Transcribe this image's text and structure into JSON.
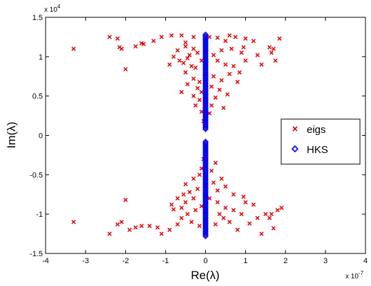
{
  "chart_data": {
    "type": "scatter",
    "xlabel": "Re(λ)",
    "ylabel": "Im(λ)",
    "x_exponent_label": "x 10",
    "x_exponent_power": "-7",
    "y_exponent_label": "x 10",
    "y_exponent_power": "4",
    "xlim": [
      -4,
      4
    ],
    "ylim": [
      -1.5,
      1.5
    ],
    "x_ticks": [
      -4,
      -3,
      -2,
      -1,
      0,
      1,
      2,
      3,
      4
    ],
    "y_ticks": [
      -1.5,
      -1,
      -0.5,
      0,
      0.5,
      1,
      1.5
    ],
    "x_tick_labels": [
      "-4",
      "-3",
      "-2",
      "-1",
      "0",
      "1",
      "2",
      "3",
      "4"
    ],
    "y_tick_labels": [
      "-1.5",
      "-1",
      "-0.5",
      "0",
      "0.5",
      "1",
      "1.5"
    ],
    "grid": false,
    "legend_position": "right",
    "series": [
      {
        "name": "eigs",
        "marker": "x",
        "color": "#e00000",
        "points": [
          [
            -3.3,
            1.1
          ],
          [
            -2.4,
            1.25
          ],
          [
            -2.2,
            1.23
          ],
          [
            -2.15,
            1.12
          ],
          [
            -2.1,
            1.1
          ],
          [
            -2.0,
            0.84
          ],
          [
            -1.75,
            1.13
          ],
          [
            -1.6,
            1.17
          ],
          [
            -1.55,
            1.16
          ],
          [
            -1.3,
            1.2
          ],
          [
            -1.1,
            1.25
          ],
          [
            -0.85,
            1.27
          ],
          [
            -0.6,
            1.27
          ],
          [
            -0.3,
            1.25
          ],
          [
            -0.5,
            1.18
          ],
          [
            -0.7,
            1.08
          ],
          [
            -0.4,
            1.02
          ],
          [
            -0.65,
            0.95
          ],
          [
            -0.55,
            0.92
          ],
          [
            -0.35,
            0.88
          ],
          [
            -0.25,
            0.86
          ],
          [
            -0.5,
            0.8
          ],
          [
            -0.3,
            0.72
          ],
          [
            -0.15,
            0.68
          ],
          [
            -0.45,
            0.65
          ],
          [
            -0.2,
            0.6
          ],
          [
            -0.1,
            0.55
          ],
          [
            -0.6,
            0.55
          ],
          [
            -0.3,
            0.5
          ],
          [
            -0.15,
            0.45
          ],
          [
            -0.25,
            0.38
          ],
          [
            -0.1,
            0.3
          ],
          [
            -0.05,
            0.18
          ],
          [
            -0.5,
            1.13
          ],
          [
            -0.8,
            1.0
          ],
          [
            -0.9,
            0.9
          ],
          [
            -0.45,
            0.98
          ],
          [
            -0.2,
            1.05
          ],
          [
            -0.1,
            0.95
          ],
          [
            -0.3,
            1.1
          ],
          [
            0.1,
            1.25
          ],
          [
            0.3,
            1.24
          ],
          [
            0.5,
            1.2
          ],
          [
            0.6,
            1.27
          ],
          [
            0.75,
            1.25
          ],
          [
            0.95,
            1.12
          ],
          [
            1.0,
            1.23
          ],
          [
            1.2,
            1.2
          ],
          [
            0.9,
            1.05
          ],
          [
            0.65,
            1.1
          ],
          [
            0.4,
            1.08
          ],
          [
            0.2,
            1.02
          ],
          [
            0.3,
            0.95
          ],
          [
            0.5,
            0.9
          ],
          [
            0.7,
            0.88
          ],
          [
            0.85,
            0.8
          ],
          [
            0.6,
            0.78
          ],
          [
            0.4,
            0.7
          ],
          [
            0.2,
            0.75
          ],
          [
            0.15,
            0.62
          ],
          [
            0.35,
            0.58
          ],
          [
            0.55,
            0.52
          ],
          [
            0.25,
            0.48
          ],
          [
            0.15,
            0.38
          ],
          [
            0.45,
            0.35
          ],
          [
            0.1,
            0.28
          ],
          [
            1.3,
            1.02
          ],
          [
            1.4,
            0.9
          ],
          [
            1.6,
            1.12
          ],
          [
            1.7,
            1.1
          ],
          [
            1.75,
            0.95
          ],
          [
            1.85,
            1.23
          ],
          [
            1.65,
            1.05
          ],
          [
            1.0,
            0.95
          ],
          [
            0.8,
            0.68
          ],
          [
            -3.3,
            -1.1
          ],
          [
            -2.4,
            -1.25
          ],
          [
            -2.2,
            -1.13
          ],
          [
            -2.1,
            -1.1
          ],
          [
            -2.0,
            -0.82
          ],
          [
            -1.9,
            -1.2
          ],
          [
            -1.75,
            -1.17
          ],
          [
            -1.6,
            -1.15
          ],
          [
            -1.4,
            -1.15
          ],
          [
            -1.2,
            -1.17
          ],
          [
            -1.1,
            -1.25
          ],
          [
            -0.9,
            -1.2
          ],
          [
            -0.8,
            -0.94
          ],
          [
            -0.6,
            -0.92
          ],
          [
            -0.5,
            -0.85
          ],
          [
            -0.3,
            -0.8
          ],
          [
            -0.7,
            -0.8
          ],
          [
            -0.4,
            -0.72
          ],
          [
            -0.2,
            -0.68
          ],
          [
            -0.5,
            -0.62
          ],
          [
            -0.3,
            -0.55
          ],
          [
            -0.15,
            -0.5
          ],
          [
            -0.1,
            -0.42
          ],
          [
            -0.05,
            -0.3
          ],
          [
            -0.6,
            -1.05
          ],
          [
            -0.45,
            -1.0
          ],
          [
            -0.25,
            -0.95
          ],
          [
            -0.1,
            -0.9
          ],
          [
            -0.35,
            -1.1
          ],
          [
            -0.7,
            -1.13
          ],
          [
            -0.15,
            -1.15
          ],
          [
            -0.55,
            -0.75
          ],
          [
            -0.85,
            -0.88
          ],
          [
            0.1,
            -0.8
          ],
          [
            0.3,
            -0.85
          ],
          [
            0.5,
            -0.92
          ],
          [
            0.7,
            -0.95
          ],
          [
            0.9,
            -1.0
          ],
          [
            1.0,
            -0.85
          ],
          [
            1.2,
            -0.88
          ],
          [
            1.3,
            -1.05
          ],
          [
            1.4,
            -1.25
          ],
          [
            1.5,
            -1.0
          ],
          [
            1.6,
            -1.05
          ],
          [
            1.7,
            -1.18
          ],
          [
            1.8,
            -0.95
          ],
          [
            1.9,
            -0.92
          ],
          [
            0.3,
            -0.7
          ],
          [
            0.5,
            -0.65
          ],
          [
            0.2,
            -0.6
          ],
          [
            0.4,
            -0.55
          ],
          [
            0.15,
            -0.45
          ],
          [
            0.25,
            -0.35
          ],
          [
            0.6,
            -1.1
          ],
          [
            0.8,
            -1.2
          ],
          [
            0.45,
            -1.05
          ],
          [
            0.25,
            -1.13
          ],
          [
            0.7,
            -0.75
          ],
          [
            1.1,
            -1.12
          ],
          [
            1.65,
            -1.0
          ],
          [
            0.95,
            -0.78
          ],
          [
            0.35,
            -1.0
          ]
        ]
      },
      {
        "name": "HKS",
        "marker": "diamond",
        "color": "#0000ee",
        "x_fixed": 0,
        "y_ranges": [
          [
            0.08,
            1.28
          ],
          [
            -1.28,
            -0.08
          ]
        ]
      }
    ]
  }
}
